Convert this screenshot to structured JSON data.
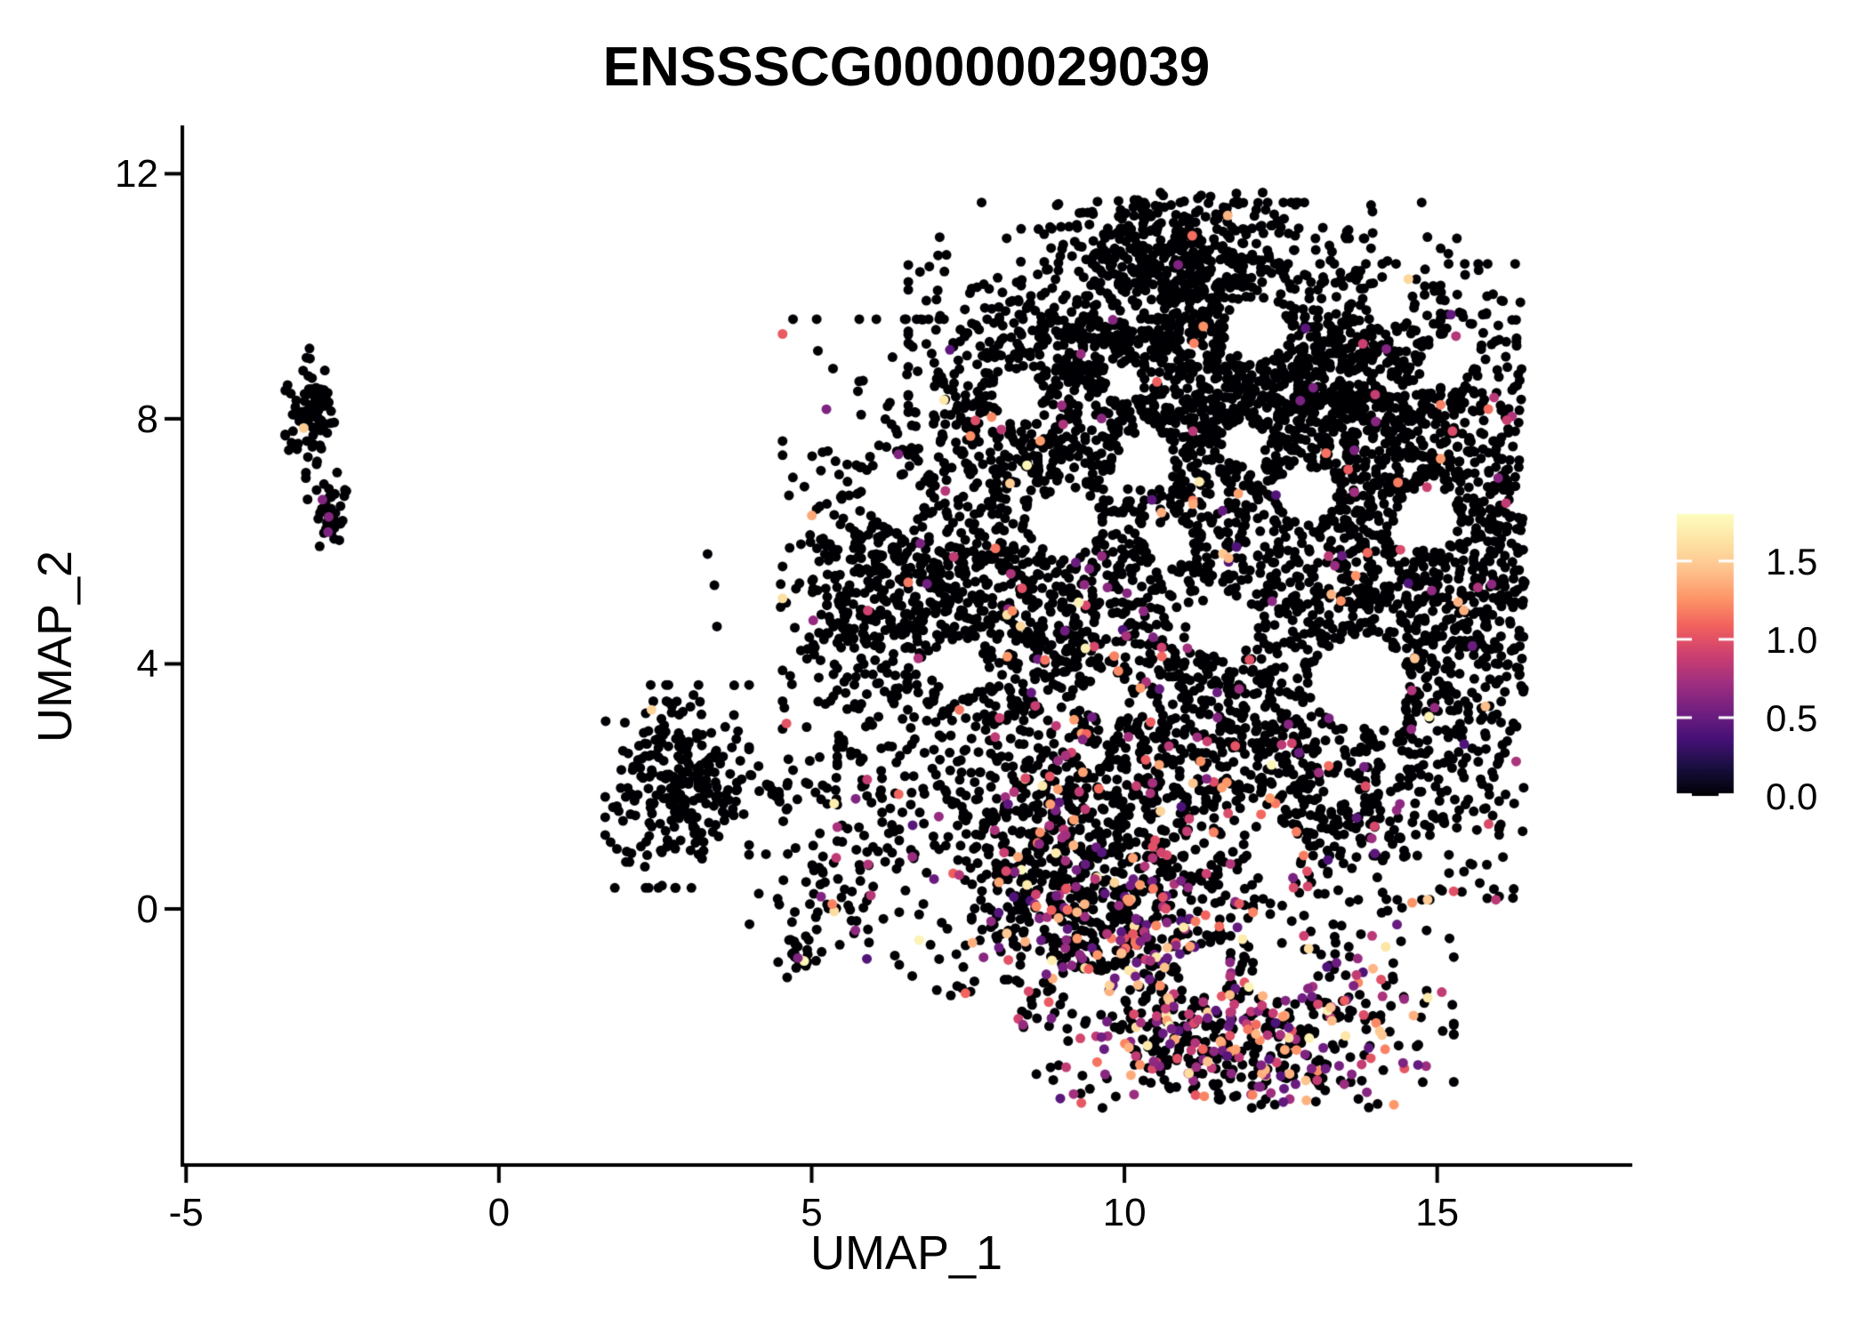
{
  "chart_data": {
    "type": "scatter",
    "title": "ENSSSCG00000029039",
    "xlabel": "UMAP_1",
    "ylabel": "UMAP_2",
    "xlim": [
      -5.06,
      18.09
    ],
    "ylim": [
      -4.18,
      12.76
    ],
    "x_ticks": [
      -5,
      0,
      5,
      10,
      15
    ],
    "y_ticks": [
      0,
      4,
      8,
      12
    ],
    "grid": false,
    "background": "#ffffff",
    "axis_color": "#000000",
    "point_radius_px": 5.5,
    "seed": 12345,
    "colorbar": {
      "position": "right",
      "tick_labels": [
        "1.5",
        "1.0",
        "0.5",
        "0.0"
      ],
      "tick_values": [
        1.5,
        1.0,
        0.5,
        0.0
      ],
      "max_value": 1.8,
      "colormap": "magma",
      "stops": [
        [
          0.0,
          "#000004"
        ],
        [
          0.1,
          "#180f3e"
        ],
        [
          0.2,
          "#451077"
        ],
        [
          0.3,
          "#721f81"
        ],
        [
          0.4,
          "#9f2f7f"
        ],
        [
          0.5,
          "#cd4071"
        ],
        [
          0.6,
          "#f1605d"
        ],
        [
          0.7,
          "#fd9567"
        ],
        [
          0.8,
          "#fec18d"
        ],
        [
          0.9,
          "#fde2a3"
        ],
        [
          1.0,
          "#fcfdbf"
        ]
      ]
    },
    "clusters": [
      {
        "name": "left-small-upper",
        "cx": -3.0,
        "cy": 7.95,
        "sx": 0.18,
        "sy": 0.55,
        "n": 85,
        "colored_frac": 0.0
      },
      {
        "name": "left-small-lower",
        "cx": -2.66,
        "cy": 6.38,
        "sx": 0.13,
        "sy": 0.28,
        "n": 38,
        "colored_frac": 0.0
      },
      {
        "name": "mid-cluster-core",
        "cx": 2.85,
        "cy": 2.0,
        "sx": 0.5,
        "sy": 0.72,
        "n": 255,
        "colored_frac": 0.004
      },
      {
        "name": "mid-cluster-chain",
        "cx": 4.4,
        "cy": 2.05,
        "sx": 0.75,
        "sy": 0.22,
        "n": 42,
        "colored_frac": 0.0
      },
      {
        "name": "mid-cluster-lower",
        "cx": 5.25,
        "cy": 0.45,
        "sx": 0.6,
        "sy": 0.55,
        "n": 65,
        "colored_frac": 0.05
      },
      {
        "name": "mid-cluster-tail",
        "cx": 4.85,
        "cy": -0.75,
        "sx": 0.18,
        "sy": 0.18,
        "n": 22,
        "colored_frac": 0.08
      },
      {
        "name": "bridge-sparse",
        "cx": 6.6,
        "cy": 1.5,
        "sx": 0.5,
        "sy": 0.8,
        "n": 20,
        "colored_frac": 0.03
      },
      {
        "name": "stray-left",
        "cx": 5.6,
        "cy": 3.6,
        "sx": 1.0,
        "sy": 1.6,
        "n": 16,
        "colored_frac": 0.0
      },
      {
        "name": "blob-apex",
        "cx": 10.9,
        "cy": 10.9,
        "sx": 0.85,
        "sy": 0.55,
        "n": 260,
        "colored_frac": 0.01
      },
      {
        "name": "blob-top-wedge",
        "cx": 10.8,
        "cy": 9.0,
        "sx": 1.85,
        "sy": 1.1,
        "n": 1350,
        "colored_frac": 0.012
      },
      {
        "name": "blob-mid-left",
        "cx": 8.1,
        "cy": 5.6,
        "sx": 1.55,
        "sy": 1.75,
        "n": 1250,
        "colored_frac": 0.04
      },
      {
        "name": "blob-left-tip",
        "cx": 6.0,
        "cy": 5.3,
        "sx": 0.65,
        "sy": 0.85,
        "n": 200,
        "colored_frac": 0.02
      },
      {
        "name": "blob-mid-right",
        "cx": 13.1,
        "cy": 5.7,
        "sx": 1.95,
        "sy": 2.1,
        "n": 1450,
        "colored_frac": 0.045
      },
      {
        "name": "blob-right-upper",
        "cx": 14.2,
        "cy": 8.3,
        "sx": 1.35,
        "sy": 1.15,
        "n": 650,
        "colored_frac": 0.02
      },
      {
        "name": "blob-right-edge",
        "cx": 16.0,
        "cy": 6.3,
        "sx": 0.45,
        "sy": 1.3,
        "n": 160,
        "colored_frac": 0.03
      },
      {
        "name": "blob-center-bottom",
        "cx": 10.7,
        "cy": 1.9,
        "sx": 2.3,
        "sy": 1.35,
        "n": 1050,
        "colored_frac": 0.12
      },
      {
        "name": "blob-bottom-left",
        "cx": 8.7,
        "cy": 0.4,
        "sx": 1.0,
        "sy": 0.95,
        "n": 330,
        "colored_frac": 0.2
      },
      {
        "name": "blob-right-lower",
        "cx": 15.1,
        "cy": 3.6,
        "sx": 0.95,
        "sy": 1.5,
        "n": 340,
        "colored_frac": 0.05
      },
      {
        "name": "blob-neck",
        "cx": 10.1,
        "cy": -0.55,
        "sx": 0.85,
        "sy": 0.6,
        "n": 230,
        "colored_frac": 0.3
      },
      {
        "name": "blob-bottom-lobe",
        "cx": 11.7,
        "cy": -2.05,
        "sx": 1.55,
        "sy": 0.7,
        "n": 580,
        "colored_frac": 0.38
      }
    ],
    "holes": [
      [
        12.1,
        9.45,
        0.5
      ],
      [
        9.05,
        6.3,
        0.55
      ],
      [
        13.75,
        3.7,
        0.75
      ],
      [
        11.6,
        4.6,
        0.5
      ],
      [
        7.35,
        3.95,
        0.45
      ],
      [
        10.35,
        7.35,
        0.45
      ],
      [
        14.85,
        6.35,
        0.5
      ],
      [
        6.35,
        6.65,
        0.4
      ],
      [
        12.9,
        6.75,
        0.45
      ],
      [
        15.15,
        8.9,
        0.4
      ],
      [
        8.3,
        8.35,
        0.4
      ],
      [
        9.7,
        3.45,
        0.35
      ],
      [
        12.4,
        0.95,
        0.45
      ],
      [
        10.7,
        5.95,
        0.35
      ],
      [
        11.3,
        -1.0,
        0.4
      ],
      [
        12.5,
        -1.05,
        0.45
      ],
      [
        9.4,
        -1.35,
        0.35
      ],
      [
        14.2,
        9.9,
        0.35
      ],
      [
        11.9,
        7.6,
        0.35
      ],
      [
        10.0,
        8.6,
        0.3
      ]
    ],
    "special_points": [
      {
        "x": -3.12,
        "y": 7.85,
        "v": 1.5
      },
      {
        "x": -2.82,
        "y": 6.68,
        "v": 0.6
      },
      {
        "x": -2.72,
        "y": 6.4,
        "v": 0.62
      },
      {
        "x": -2.73,
        "y": 6.15,
        "v": 0.58
      },
      {
        "x": 2.44,
        "y": 3.25,
        "v": 1.55
      },
      {
        "x": 5.36,
        "y": 1.72,
        "v": 1.7
      },
      {
        "x": 5.15,
        "y": 0.2,
        "v": 0.6
      },
      {
        "x": 5.7,
        "y": -0.35,
        "v": 0.65
      },
      {
        "x": 5.33,
        "y": 0.08,
        "v": 1.2
      },
      {
        "x": 4.88,
        "y": -0.85,
        "v": 1.75
      },
      {
        "x": 4.78,
        "y": -0.8,
        "v": 0.6
      },
      {
        "x": 15.3,
        "y": 9.35,
        "v": 0.8
      }
    ]
  }
}
